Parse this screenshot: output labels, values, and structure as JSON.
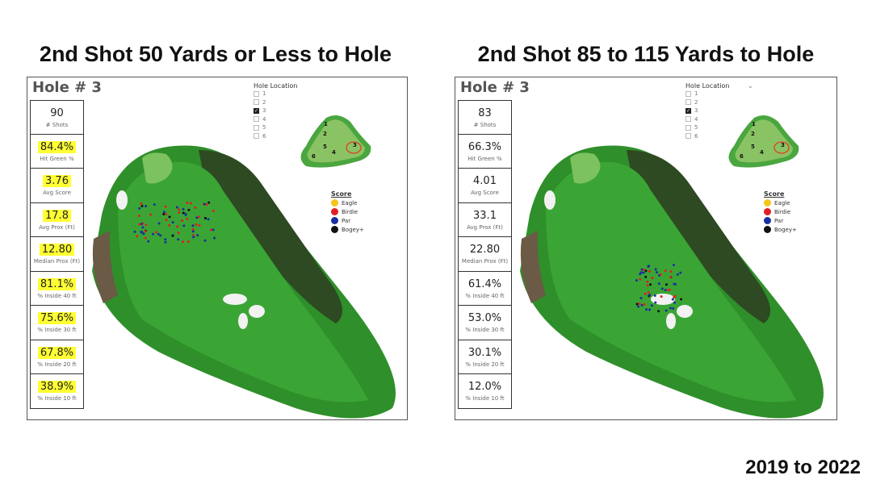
{
  "panels": [
    {
      "title": "2nd Shot 50 Yards or Less to Hole",
      "hole": "Hole # 3",
      "stats": [
        {
          "value": "90",
          "label": "# Shots",
          "highlight": false
        },
        {
          "value": "84.4%",
          "label": "Hit Green %",
          "highlight": true
        },
        {
          "value": "3.76",
          "label": "Avg Score",
          "highlight": true
        },
        {
          "value": "17.8",
          "label": "Avg Prox (Ft)",
          "highlight": true
        },
        {
          "value": "12.80",
          "label": "Median Prox (Ft)",
          "highlight": true
        },
        {
          "value": "81.1%",
          "label": "% Inside 40 ft",
          "highlight": true
        },
        {
          "value": "75.6%",
          "label": "% Inside 30 ft",
          "highlight": true
        },
        {
          "value": "67.8%",
          "label": "% Inside 20 ft",
          "highlight": true
        },
        {
          "value": "38.9%",
          "label": "% Inside 10 ft",
          "highlight": true
        }
      ]
    },
    {
      "title": "2nd Shot 85 to 115 Yards to Hole",
      "hole": "Hole # 3",
      "stats": [
        {
          "value": "83",
          "label": "# Shots",
          "highlight": false
        },
        {
          "value": "66.3%",
          "label": "Hit Green %",
          "highlight": false
        },
        {
          "value": "4.01",
          "label": "Avg Score",
          "highlight": false
        },
        {
          "value": "33.1",
          "label": "Avg Prox (Ft)",
          "highlight": false
        },
        {
          "value": "22.80",
          "label": "Median Prox (Ft)",
          "highlight": false
        },
        {
          "value": "61.4%",
          "label": "% Inside 40 ft",
          "highlight": false
        },
        {
          "value": "53.0%",
          "label": "% Inside 30 ft",
          "highlight": false
        },
        {
          "value": "30.1%",
          "label": "% Inside 20 ft",
          "highlight": false
        },
        {
          "value": "12.0%",
          "label": "% Inside 10 ft",
          "highlight": false
        }
      ]
    }
  ],
  "hole_location": {
    "label": "Hole Location",
    "options": [
      "1",
      "2",
      "3",
      "4",
      "5",
      "6"
    ],
    "selected": "3"
  },
  "green_labels": [
    "1",
    "2",
    "3",
    "4",
    "5",
    "6"
  ],
  "score_legend": {
    "title": "Score",
    "items": [
      {
        "label": "Eagle",
        "color": "#f5c518"
      },
      {
        "label": "Birdie",
        "color": "#e02020"
      },
      {
        "label": "Par",
        "color": "#1a2fa0"
      },
      {
        "label": "Bogey+",
        "color": "#111111"
      }
    ]
  },
  "highlight_color": "#ffff33",
  "footer": "2019 to 2022"
}
